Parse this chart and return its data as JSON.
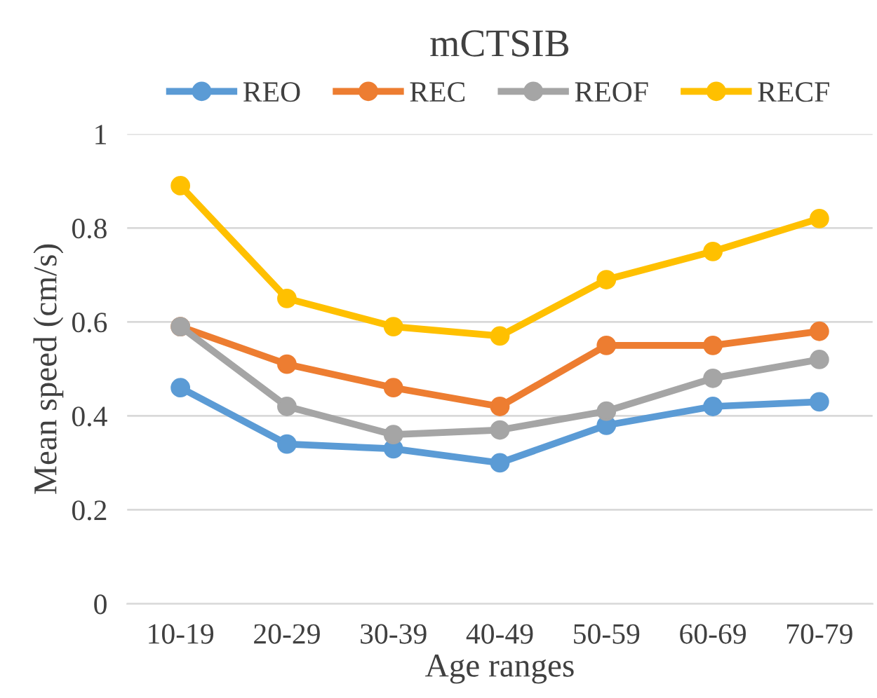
{
  "chart_data": {
    "type": "line",
    "title": "mCTSIB",
    "xlabel": "Age ranges",
    "ylabel": "Mean speed (cm/s)",
    "categories": [
      "10-19",
      "20-29",
      "30-39",
      "40-49",
      "50-59",
      "60-69",
      "70-79"
    ],
    "series": [
      {
        "name": "REO",
        "color": "#5b9bd5",
        "values": [
          0.46,
          0.34,
          0.33,
          0.3,
          0.38,
          0.42,
          0.43
        ]
      },
      {
        "name": "REC",
        "color": "#ed7d31",
        "values": [
          0.59,
          0.51,
          0.46,
          0.42,
          0.55,
          0.55,
          0.58
        ]
      },
      {
        "name": "REOF",
        "color": "#a5a5a5",
        "values": [
          0.59,
          0.42,
          0.36,
          0.37,
          0.41,
          0.48,
          0.52
        ]
      },
      {
        "name": "RECF",
        "color": "#ffc000",
        "values": [
          0.89,
          0.65,
          0.59,
          0.57,
          0.69,
          0.75,
          0.82
        ]
      }
    ],
    "ylim": [
      0,
      1
    ],
    "yticks": [
      0,
      0.2,
      0.4,
      0.6,
      0.8,
      1
    ],
    "grid": "y",
    "legend": "top",
    "marker": "circle",
    "line_style": "solid"
  }
}
